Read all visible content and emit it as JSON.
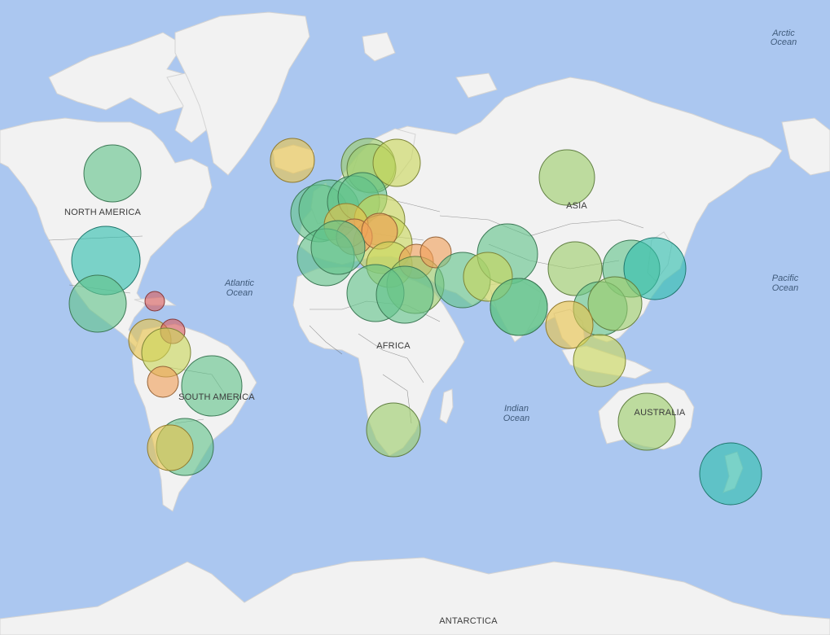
{
  "colors": {
    "ocean": "#abc7f0",
    "land": "#f2f2f2",
    "bubble_scale": [
      "#d95d5d",
      "#f0a05a",
      "#e8c44a",
      "#c9d65a",
      "#9ccd6a",
      "#63c38a",
      "#30bfae"
    ]
  },
  "labels": {
    "continents": {
      "north_america": "NORTH AMERICA",
      "south_america": "SOUTH AMERICA",
      "africa": "AFRICA",
      "asia": "ASIA",
      "australia": "AUSTRALIA",
      "antarctica": "ANTARCTICA"
    },
    "oceans": {
      "arctic_1": "Arctic",
      "arctic_2": "Ocean",
      "atlantic_1": "Atlantic",
      "atlantic_2": "Ocean",
      "pacific_1": "Pacific",
      "pacific_2": "Ocean",
      "indian_1": "Indian",
      "indian_2": "Ocean"
    }
  },
  "bubbles": [
    {
      "region": "Canada",
      "level": 5
    },
    {
      "region": "United States",
      "level": 6
    },
    {
      "region": "Mexico",
      "level": 5
    },
    {
      "region": "Cuba",
      "level": 0
    },
    {
      "region": "Central America",
      "level": 2
    },
    {
      "region": "Venezuela",
      "level": 0
    },
    {
      "region": "Colombia",
      "level": 3
    },
    {
      "region": "Ecuador",
      "level": 1
    },
    {
      "region": "Brazil",
      "level": 5
    },
    {
      "region": "Argentina",
      "level": 5
    },
    {
      "region": "Chile",
      "level": 2
    },
    {
      "region": "Iceland",
      "level": 2
    },
    {
      "region": "Norway",
      "level": 4
    },
    {
      "region": "Sweden",
      "level": 4
    },
    {
      "region": "Finland",
      "level": 3
    },
    {
      "region": "United Kingdom",
      "level": 5
    },
    {
      "region": "Ireland",
      "level": 5
    },
    {
      "region": "Netherlands",
      "level": 5
    },
    {
      "region": "Denmark",
      "level": 5
    },
    {
      "region": "Germany",
      "level": 3
    },
    {
      "region": "Poland",
      "level": 3
    },
    {
      "region": "France",
      "level": 2
    },
    {
      "region": "Switzerland",
      "level": 1
    },
    {
      "region": "Austria",
      "level": 1
    },
    {
      "region": "Portugal",
      "level": 5
    },
    {
      "region": "Spain",
      "level": 5
    },
    {
      "region": "Italy",
      "level": 3
    },
    {
      "region": "Balkans",
      "level": 1
    },
    {
      "region": "Greece",
      "level": 4
    },
    {
      "region": "Turkey",
      "level": 1
    },
    {
      "region": "Morocco",
      "level": 5
    },
    {
      "region": "Egypt",
      "level": 5
    },
    {
      "region": "Israel",
      "level": 5
    },
    {
      "region": "Saudi Arabia",
      "level": 5
    },
    {
      "region": "Russia",
      "level": 4
    },
    {
      "region": "Kazakhstan",
      "level": 5
    },
    {
      "region": "Pakistan",
      "level": 3
    },
    {
      "region": "India",
      "level": 5
    },
    {
      "region": "China",
      "level": 4
    },
    {
      "region": "South Korea",
      "level": 5
    },
    {
      "region": "Japan",
      "level": 6
    },
    {
      "region": "Taiwan",
      "level": 5
    },
    {
      "region": "Vietnam",
      "level": 4
    },
    {
      "region": "Thailand",
      "level": 2
    },
    {
      "region": "Indonesia",
      "level": 3
    },
    {
      "region": "South Africa",
      "level": 4
    },
    {
      "region": "Australia",
      "level": 4
    },
    {
      "region": "New Zealand",
      "level": 6
    }
  ]
}
